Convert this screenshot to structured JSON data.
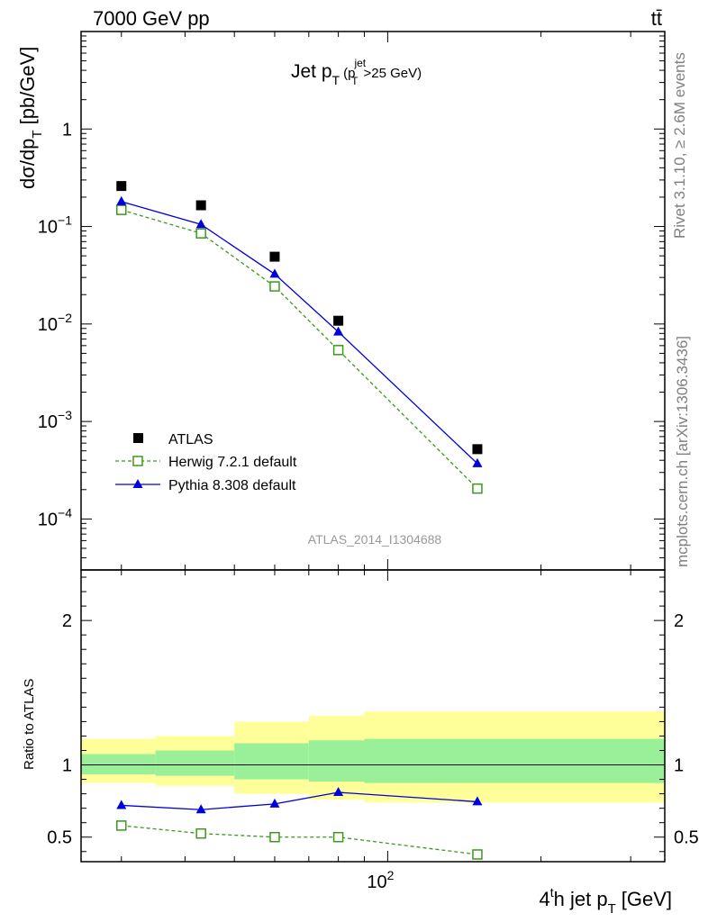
{
  "header": {
    "energy_label": "7000 GeV pp",
    "process_label": "tt̄"
  },
  "side_labels": {
    "rivet": "Rivet 3.1.10, ≥ 2.6M events",
    "mcplots": "mcplots.cern.ch [arXiv:1306.3436]"
  },
  "analysis_id": "ATLAS_2014_I1304688",
  "chart_data": [
    {
      "type": "scatter",
      "title": "Jet pT (pT^jet > 25 GeV)",
      "title_main": "Jet p",
      "title_sub": "T",
      "title_cut_sup": "jet",
      "title_cut_sub": "T",
      "title_cut_tail": ">25 GeV)",
      "ylabel": "dσ/dp_T [pb/GeV]",
      "ylabel_main": "dσ/dp",
      "ylabel_sub": "T",
      "ylabel_unit": "[pb/GeV]",
      "yscale": "log",
      "ylim": [
        3e-05,
        10
      ],
      "xscale": "log",
      "xlim": [
        25,
        350
      ],
      "yticks": [
        {
          "value": 1,
          "label": "1"
        },
        {
          "value": 0.1,
          "base": "10",
          "exp": "−1"
        },
        {
          "value": 0.01,
          "base": "10",
          "exp": "−2"
        },
        {
          "value": 0.001,
          "base": "10",
          "exp": "−3"
        },
        {
          "value": 0.0001,
          "base": "10",
          "exp": "−4"
        }
      ],
      "legend_position": "bottom-left",
      "series": [
        {
          "name": "ATLAS",
          "style": "data",
          "color": "#000000",
          "x": [
            30,
            43,
            60,
            80,
            150
          ],
          "y": [
            0.26,
            0.165,
            0.049,
            0.0108,
            0.00052
          ]
        },
        {
          "name": "Herwig 7.2.1 default",
          "style": "dashed-open-square",
          "color": "#3a9a1a",
          "x": [
            30,
            43,
            60,
            80,
            150
          ],
          "y": [
            0.148,
            0.085,
            0.0243,
            0.0054,
            0.000205
          ]
        },
        {
          "name": "Pythia 8.308 default",
          "style": "solid-triangle",
          "color": "#0000dd",
          "x": [
            30,
            43,
            60,
            80,
            150
          ],
          "y": [
            0.18,
            0.105,
            0.0325,
            0.0083,
            0.00037
          ]
        }
      ]
    },
    {
      "type": "line",
      "ylabel": "Ratio to ATLAS",
      "ylim": [
        0.33,
        2.35
      ],
      "xlabel": "4th jet pT [GeV]",
      "xlabel_pre": "4",
      "xlabel_sup": "t",
      "xlabel_mid": "h jet p",
      "xlabel_sub": "T",
      "xlabel_unit": "[GeV]",
      "xticks": [
        {
          "value": 100,
          "base": "10",
          "exp": "2"
        }
      ],
      "yticks": [
        {
          "value": 0.5,
          "label": "0.5"
        },
        {
          "value": 1,
          "label": "1"
        },
        {
          "value": 2,
          "label": "2"
        }
      ],
      "bands": {
        "bin_edges": [
          25,
          35,
          50,
          70,
          90,
          350
        ],
        "stat_syst_lo": [
          0.875,
          0.855,
          0.8,
          0.76,
          0.74
        ],
        "stat_syst_hi": [
          1.18,
          1.2,
          1.3,
          1.34,
          1.37
        ],
        "stat_lo": [
          0.935,
          0.925,
          0.9,
          0.885,
          0.875
        ],
        "stat_hi": [
          1.075,
          1.1,
          1.15,
          1.17,
          1.18
        ],
        "outer_color": "#ffff99",
        "inner_color": "#99f099"
      },
      "series": [
        {
          "name": "Herwig 7.2.1 default",
          "style": "dashed-open-square",
          "color": "#3a9a1a",
          "x": [
            30,
            43,
            60,
            80,
            150
          ],
          "y": [
            0.58,
            0.525,
            0.5,
            0.5,
            0.38
          ]
        },
        {
          "name": "Pythia 8.308 default",
          "style": "solid-triangle",
          "color": "#0000dd",
          "x": [
            30,
            43,
            60,
            80,
            150
          ],
          "y": [
            0.72,
            0.69,
            0.73,
            0.81,
            0.745
          ]
        }
      ]
    }
  ]
}
